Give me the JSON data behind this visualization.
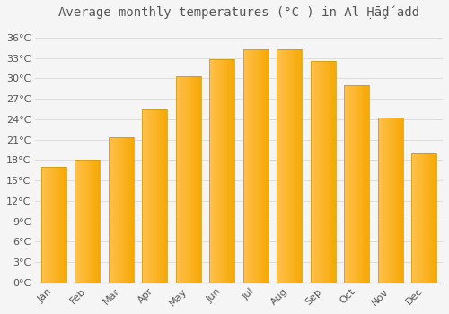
{
  "title": "Average monthly temperatures (°C ) in Al Ḥāḑ́add",
  "months": [
    "Jan",
    "Feb",
    "Mar",
    "Apr",
    "May",
    "Jun",
    "Jul",
    "Aug",
    "Sep",
    "Oct",
    "Nov",
    "Dec"
  ],
  "temperatures": [
    17.0,
    18.0,
    21.3,
    25.5,
    30.3,
    32.8,
    34.3,
    34.3,
    32.5,
    29.0,
    24.3,
    19.0
  ],
  "bar_color_left": "#FFC04C",
  "bar_color_right": "#F5A800",
  "bar_edge_color": "#C8960A",
  "background_color": "#F5F5F5",
  "grid_color": "#DDDDDD",
  "text_color": "#555555",
  "ylim": [
    0,
    38
  ],
  "yticks": [
    0,
    3,
    6,
    9,
    12,
    15,
    18,
    21,
    24,
    27,
    30,
    33,
    36
  ],
  "title_fontsize": 10,
  "tick_fontsize": 8,
  "bar_width": 0.75
}
